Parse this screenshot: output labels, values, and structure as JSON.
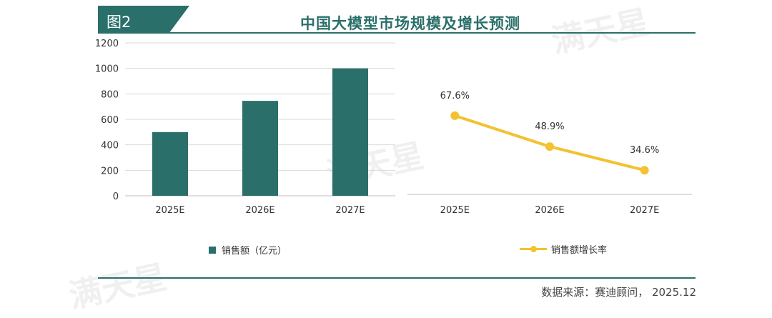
{
  "figure_tag": "图2",
  "title": "中国大模型市场规模及增长预测",
  "source": "数据来源：赛迪顾问， 2025.12",
  "watermark": "满天星",
  "colors": {
    "bar": "#2a6f6a",
    "line": "#f2c230",
    "grid": "#d9d9d9"
  },
  "chart_data": [
    {
      "type": "bar",
      "categories": [
        "2025E",
        "2026E",
        "2027E"
      ],
      "series": [
        {
          "name": "销售额（亿元）",
          "values": [
            500,
            745,
            1000
          ]
        }
      ],
      "ylim": [
        0,
        1200
      ],
      "yticks": [
        0,
        200,
        400,
        600,
        800,
        1000,
        1200
      ],
      "grid": true,
      "legend": "bottom"
    },
    {
      "type": "line",
      "categories": [
        "2025E",
        "2026E",
        "2027E"
      ],
      "series": [
        {
          "name": "销售额增长率",
          "values": [
            67.6,
            48.9,
            34.6
          ],
          "labels": [
            "67.6%",
            "48.9%",
            "34.6%"
          ]
        }
      ],
      "legend": "bottom"
    }
  ]
}
